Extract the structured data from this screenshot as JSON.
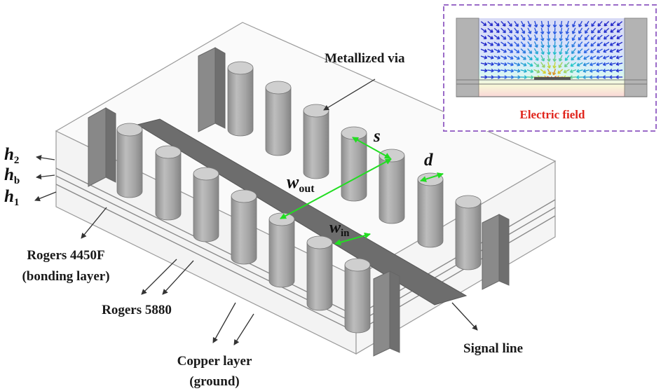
{
  "labels": {
    "metallized_via": "Metallized via",
    "electric_field": "Electric field",
    "rogers_4450f_line1": "Rogers 4450F",
    "rogers_4450f_line2": "(bonding layer)",
    "rogers_5880": "Rogers 5880",
    "copper_line1": "Copper layer",
    "copper_line2": "(ground)",
    "signal_line": "Signal line"
  },
  "symbols": {
    "h2": {
      "main": "h",
      "sub": "2"
    },
    "hb": {
      "main": "h",
      "sub": "b"
    },
    "h1": {
      "main": "h",
      "sub": "1"
    },
    "s": "s",
    "d": "d",
    "wout": {
      "main": "w",
      "sub": "out"
    },
    "win": {
      "main": "w",
      "sub": "in"
    }
  },
  "colors": {
    "substrate_edge": "#9a9a9a",
    "substrate_fill": "#efefef",
    "via_body": "#a9a9a9",
    "via_top": "#cfcfcf",
    "signal_line": "#6d6d6d",
    "dimension_arrow": "#22dd22",
    "inset_border": "#9b6bc8",
    "electric_field_title": "#e0241b"
  }
}
